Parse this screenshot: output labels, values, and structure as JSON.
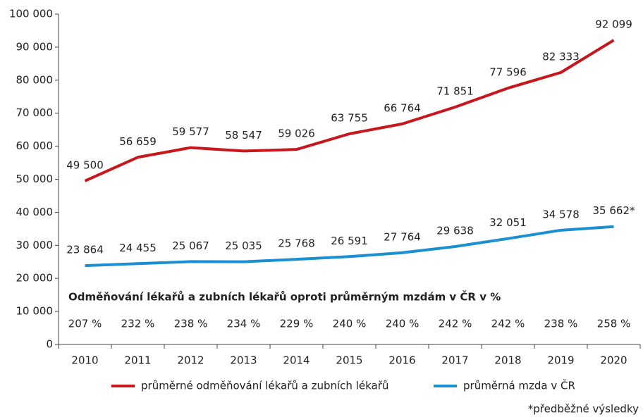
{
  "chart_data": {
    "type": "line",
    "categories": [
      "2010",
      "2011",
      "2012",
      "2013",
      "2014",
      "2015",
      "2016",
      "2017",
      "2018",
      "2019",
      "2020"
    ],
    "series": [
      {
        "name": "průměrné odměňování lékařů a zubních lékařů",
        "color": "#c8161d",
        "values": [
          49500,
          56659,
          59577,
          58547,
          59026,
          63755,
          66764,
          71851,
          77596,
          82333,
          92099
        ],
        "value_labels": [
          "49 500",
          "56 659",
          "59 577",
          "58 547",
          "59 026",
          "63 755",
          "66 764",
          "71 851",
          "77 596",
          "82 333",
          "92 099"
        ]
      },
      {
        "name": "průměrná mzda v ČR",
        "color": "#1a8fd2",
        "values": [
          23864,
          24455,
          25067,
          25035,
          25768,
          26591,
          27764,
          29638,
          32051,
          34578,
          35662
        ],
        "value_labels": [
          "23 864",
          "24 455",
          "25 067",
          "25 035",
          "25 768",
          "26 591",
          "27 764",
          "29 638",
          "32 051",
          "34 578",
          "35 662*"
        ]
      }
    ],
    "ylim": [
      0,
      100000
    ],
    "yticks": [
      0,
      {
        "value": 10000,
        "label": "10 000"
      },
      {
        "value": 20000,
        "label": "20 000"
      },
      {
        "value": 30000,
        "label": "30 000"
      },
      {
        "value": 40000,
        "label": "40 000"
      },
      {
        "value": 50000,
        "label": "50 000"
      },
      {
        "value": 60000,
        "label": "60 000"
      },
      {
        "value": 70000,
        "label": "70 000"
      },
      {
        "value": 80000,
        "label": "80 000"
      },
      {
        "value": 90000,
        "label": "90 000"
      },
      {
        "value": 100000,
        "label": "100 000"
      }
    ],
    "grid": false,
    "ratio_title": "Odměňování lékařů a zubních lékařů oproti průměrným mzdám v ČR v %",
    "ratio_labels": [
      "207 %",
      "232 %",
      "238 %",
      "234 %",
      "229 %",
      "240 %",
      "240 %",
      "242 %",
      "242 %",
      "238 %",
      "258 %"
    ],
    "footnote": "*předběžné výsledky"
  }
}
